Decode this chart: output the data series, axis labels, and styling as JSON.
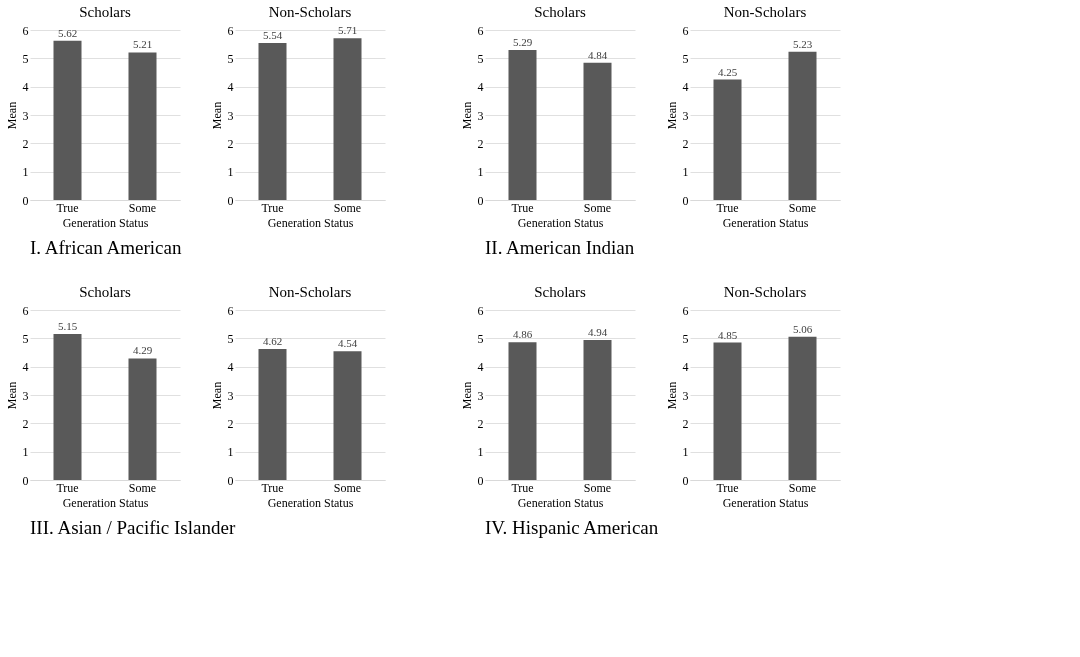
{
  "chart_data": [
    {
      "type": "bar",
      "title": "Scholars",
      "xlabel": "Generation Status",
      "ylabel": "Mean",
      "categories": [
        "True",
        "Some"
      ],
      "values": [
        5.62,
        5.21
      ],
      "color": "#595959",
      "ylim": [
        0,
        6
      ],
      "yticks": [
        0,
        1,
        2,
        3,
        4,
        5,
        6
      ],
      "grid": "y",
      "data_labels": true,
      "annotations": [
        "I. African American"
      ]
    },
    {
      "type": "bar",
      "title": "Non-Scholars",
      "xlabel": "Generation Status",
      "ylabel": "Mean",
      "categories": [
        "True",
        "Some"
      ],
      "values": [
        5.54,
        5.71
      ],
      "color": "#595959",
      "ylim": [
        0,
        6
      ],
      "yticks": [
        0,
        1,
        2,
        3,
        4,
        5,
        6
      ],
      "grid": "y",
      "data_labels": true
    },
    {
      "type": "bar",
      "title": "Scholars",
      "xlabel": "Generation Status",
      "ylabel": "Mean",
      "categories": [
        "True",
        "Some"
      ],
      "values": [
        5.29,
        4.84
      ],
      "color": "#595959",
      "ylim": [
        0,
        6
      ],
      "yticks": [
        0,
        1,
        2,
        3,
        4,
        5,
        6
      ],
      "grid": "y",
      "data_labels": true,
      "annotations": [
        "II. American Indian"
      ]
    },
    {
      "type": "bar",
      "title": "Non-Scholars",
      "xlabel": "Generation Status",
      "ylabel": "Mean",
      "categories": [
        "True",
        "Some"
      ],
      "values": [
        4.25,
        5.23
      ],
      "color": "#595959",
      "ylim": [
        0,
        6
      ],
      "yticks": [
        0,
        1,
        2,
        3,
        4,
        5,
        6
      ],
      "grid": "y",
      "data_labels": true
    },
    {
      "type": "bar",
      "title": "Scholars",
      "xlabel": "Generation Status",
      "ylabel": "Mean",
      "categories": [
        "True",
        "Some"
      ],
      "values": [
        5.15,
        4.29
      ],
      "color": "#595959",
      "ylim": [
        0,
        6
      ],
      "yticks": [
        0,
        1,
        2,
        3,
        4,
        5,
        6
      ],
      "grid": "y",
      "data_labels": true,
      "annotations": [
        "III. Asian / Pacific Islander"
      ]
    },
    {
      "type": "bar",
      "title": "Non-Scholars",
      "xlabel": "Generation Status",
      "ylabel": "Mean",
      "categories": [
        "True",
        "Some"
      ],
      "values": [
        4.62,
        4.54
      ],
      "color": "#595959",
      "ylim": [
        0,
        6
      ],
      "yticks": [
        0,
        1,
        2,
        3,
        4,
        5,
        6
      ],
      "grid": "y",
      "data_labels": true
    },
    {
      "type": "bar",
      "title": "Scholars",
      "xlabel": "Generation Status",
      "ylabel": "Mean",
      "categories": [
        "True",
        "Some"
      ],
      "values": [
        4.86,
        4.94
      ],
      "color": "#595959",
      "ylim": [
        0,
        6
      ],
      "yticks": [
        0,
        1,
        2,
        3,
        4,
        5,
        6
      ],
      "grid": "y",
      "data_labels": true,
      "annotations": [
        "IV. Hispanic American"
      ]
    },
    {
      "type": "bar",
      "title": "Non-Scholars",
      "xlabel": "Generation Status",
      "ylabel": "Mean",
      "categories": [
        "True",
        "Some"
      ],
      "values": [
        4.85,
        5.06
      ],
      "color": "#595959",
      "ylim": [
        0,
        6
      ],
      "yticks": [
        0,
        1,
        2,
        3,
        4,
        5,
        6
      ],
      "grid": "y",
      "data_labels": true
    }
  ]
}
